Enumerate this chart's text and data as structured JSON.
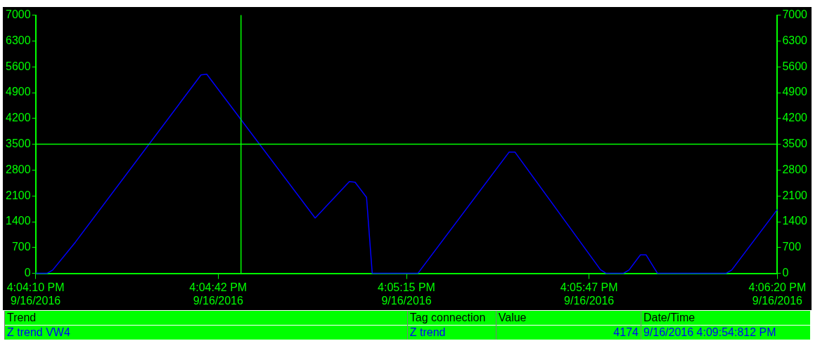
{
  "chart_data": {
    "type": "line",
    "x": [
      "2016-09-16T16:04:10",
      "2016-09-16T16:04:12",
      "2016-09-16T16:04:13",
      "2016-09-16T16:04:17",
      "2016-09-16T16:04:39",
      "2016-09-16T16:04:40",
      "2016-09-16T16:04:59",
      "2016-09-16T16:05:05",
      "2016-09-16T16:05:06",
      "2016-09-16T16:05:08",
      "2016-09-16T16:05:09",
      "2016-09-16T16:05:17",
      "2016-09-16T16:05:33",
      "2016-09-16T16:05:34",
      "2016-09-16T16:05:49",
      "2016-09-16T16:05:50",
      "2016-09-16T16:05:53",
      "2016-09-16T16:05:54",
      "2016-09-16T16:05:56",
      "2016-09-16T16:05:57",
      "2016-09-16T16:05:59",
      "2016-09-16T16:06:11",
      "2016-09-16T16:06:12",
      "2016-09-16T16:06:20"
    ],
    "series": [
      {
        "name": "Z trend VW4",
        "color": "#0000ff",
        "values": [
          0,
          0,
          90,
          850,
          5380,
          5400,
          1500,
          2490,
          2470,
          2060,
          0,
          0,
          3290,
          3290,
          100,
          0,
          0,
          90,
          500,
          500,
          0,
          0,
          90,
          1730
        ]
      }
    ],
    "xlim": [
      "2016-09-16T16:04:10",
      "2016-09-16T16:06:20"
    ],
    "xticks": [
      {
        "value": "2016-09-16T16:04:10",
        "label": "4:04:10 PM\n9/16/2016"
      },
      {
        "value": "2016-09-16T16:04:42",
        "label": "4:04:42 PM\n9/16/2016"
      },
      {
        "value": "2016-09-16T16:05:15",
        "label": "4:05:15 PM\n9/16/2016"
      },
      {
        "value": "2016-09-16T16:05:47",
        "label": "4:05:47 PM\n9/16/2016"
      },
      {
        "value": "2016-09-16T16:06:20",
        "label": "4:06:20 PM\n9/16/2016"
      }
    ],
    "ylim": [
      0,
      7000
    ],
    "yticks": [
      0,
      700,
      1400,
      2100,
      2800,
      3500,
      4200,
      4900,
      5600,
      6300,
      7000
    ],
    "y2lim": [
      0,
      7000
    ],
    "y2ticks": [
      0,
      700,
      1400,
      2100,
      2800,
      3500,
      4200,
      4900,
      5600,
      6300,
      7000
    ],
    "ref_lines": [
      {
        "axis": "y",
        "value": 3500,
        "color": "#00ff00"
      },
      {
        "axis": "x",
        "value": "2016-09-16T16:04:46",
        "color": "#00ff00"
      }
    ],
    "annotations": [
      "Trend",
      "Tag connection",
      "Value",
      "Date/Time",
      "Z trend",
      "4174",
      "9/16/2016 4:09:54:812 PM"
    ],
    "legend": "bottom",
    "grid": false,
    "marker": "none",
    "line_style": "solid"
  }
}
